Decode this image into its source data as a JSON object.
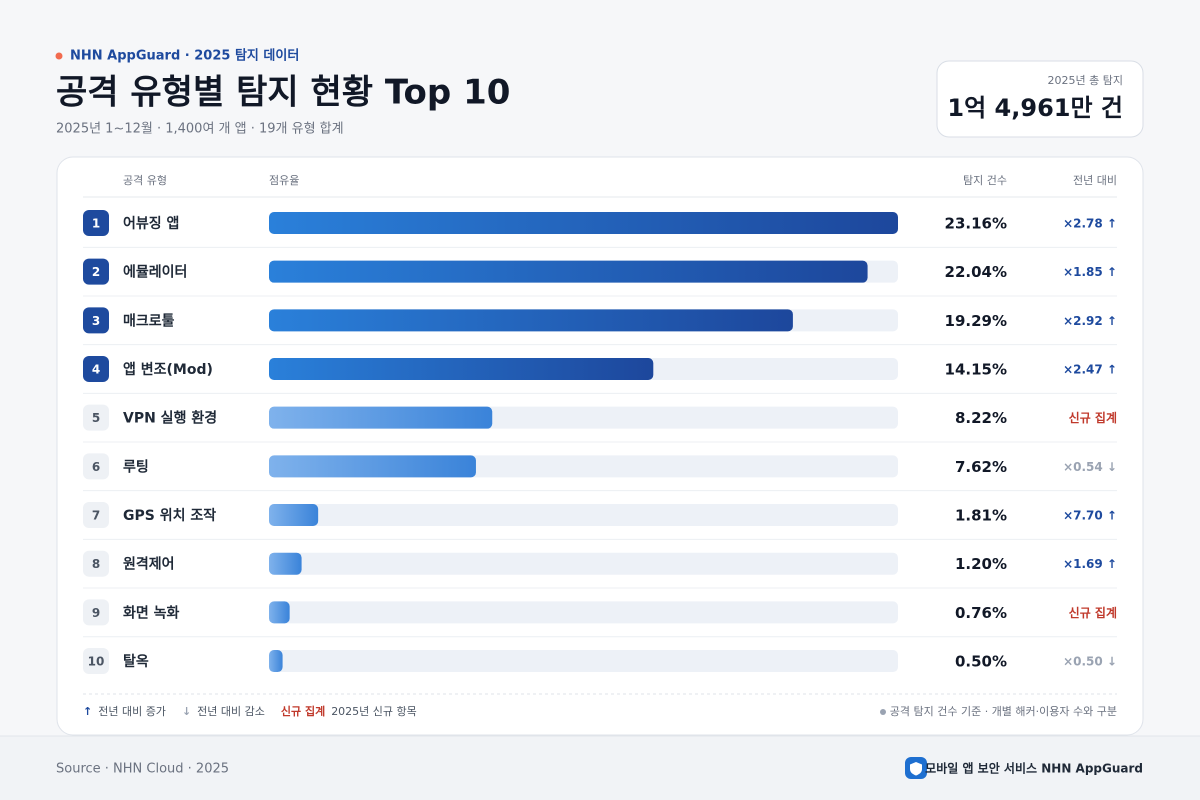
{
  "chart_data": {
    "type": "bar",
    "brand": "NHN AppGuard · 2025 탐지 데이터",
    "title": "공격 유형별 탐지 현황 Top 10",
    "subtitle": "2025년 1~12월 · 1,400여 개 앱 · 19개 유형 합계",
    "total_label": "2025년 총 탐지",
    "total_value": "1억 4,961만 건",
    "columns": [
      "공격 유형",
      "점유율",
      "탐지 건수",
      "전년 대비"
    ],
    "ranks": [
      1,
      2,
      3,
      4,
      5,
      6,
      7,
      8,
      9,
      10
    ],
    "categories": [
      "어뷰징 앱",
      "에뮬레이터",
      "매크로툴",
      "앱 변조(Mod)",
      "VPN 실행 환경",
      "루팅",
      "GPS 위치 조작",
      "원격제어",
      "화면 녹화",
      "탈옥"
    ],
    "values": [
      23.16,
      22.04,
      19.29,
      14.15,
      8.22,
      7.62,
      1.81,
      1.2,
      0.76,
      0.5
    ],
    "value_labels": [
      "23.16%",
      "22.04%",
      "19.29%",
      "14.15%",
      "8.22%",
      "7.62%",
      "1.81%",
      "1.20%",
      "0.76%",
      "0.50%"
    ],
    "emphasized": [
      true,
      true,
      true,
      true,
      false,
      false,
      false,
      false,
      false,
      false
    ],
    "changes": [
      "×2.78 ↑",
      "×1.85 ↑",
      "×2.92 ↑",
      "×2.47 ↑",
      "신규 집계",
      "×0.54 ↓",
      "×7.70 ↑",
      "×1.69 ↑",
      "신규 집계",
      "×0.50 ↓"
    ],
    "change_colors": [
      "#1e4a9e",
      "#1e4a9e",
      "#1e4a9e",
      "#1e4a9e",
      "#c0392b",
      "#9aa3b2",
      "#1e4a9e",
      "#1e4a9e",
      "#c0392b",
      "#9aa3b2"
    ],
    "legend": [
      {
        "symbol": "↑",
        "label": "전년 대비 증가",
        "color": "#1e4a9e"
      },
      {
        "symbol": "↓",
        "label": "전년 대비 감소",
        "color": "#9aa3b2"
      },
      {
        "symbol": "신규 집계",
        "label": "2025년 신규 항목",
        "color": "#c0392b"
      }
    ],
    "note": "공격 탐지 건수 기준 · 개별 해커·이용자 수와 구분",
    "source": "Source · NHN Cloud · 2025",
    "footer_brand": "모바일 앱 보안 서비스 NHN AppGuard"
  }
}
